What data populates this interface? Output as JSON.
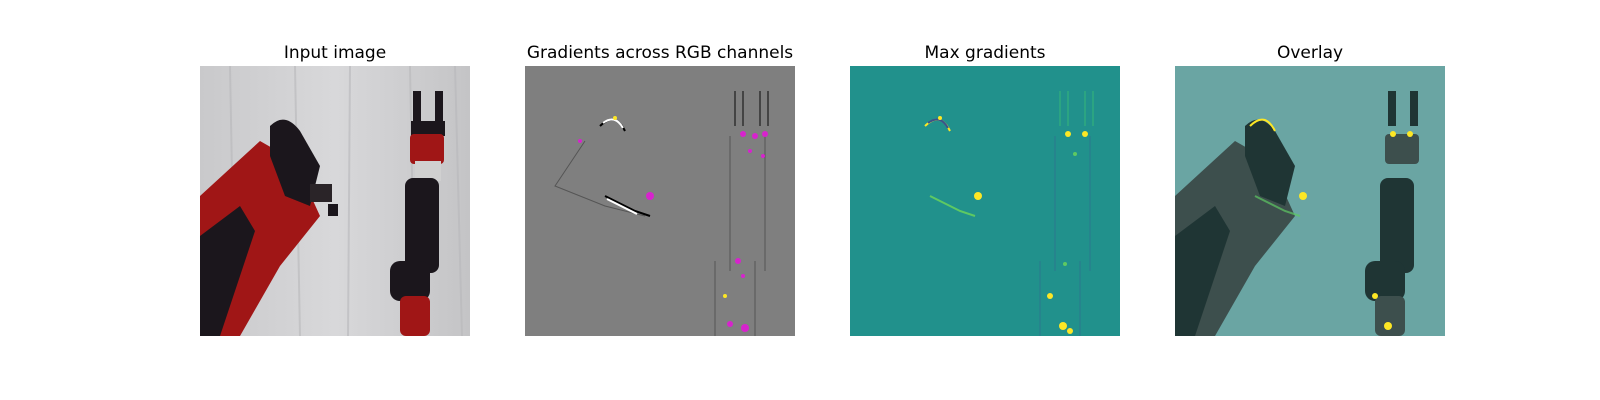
{
  "figure": {
    "panels": [
      {
        "title": "Input image"
      },
      {
        "title": "Gradients across RGB channels"
      },
      {
        "title": "Max gradients"
      },
      {
        "title": "Overlay"
      }
    ]
  },
  "colors": {
    "background": "#ffffff",
    "gradient_gray": "#7f7f7f",
    "max_gradient_base": "#21918c",
    "overlay_tint": "#2a8e8a",
    "robot_red": "#a01616",
    "robot_dark": "#1b161c",
    "highlight_yellow": "#fde725",
    "highlight_magenta": "#e11ad6"
  },
  "icons": {
    "input_image": "robot-arm-photo",
    "gradients_rgb": "gradient-map-rgb",
    "max_gradients": "gradient-map-viridis",
    "overlay": "overlay-map"
  }
}
